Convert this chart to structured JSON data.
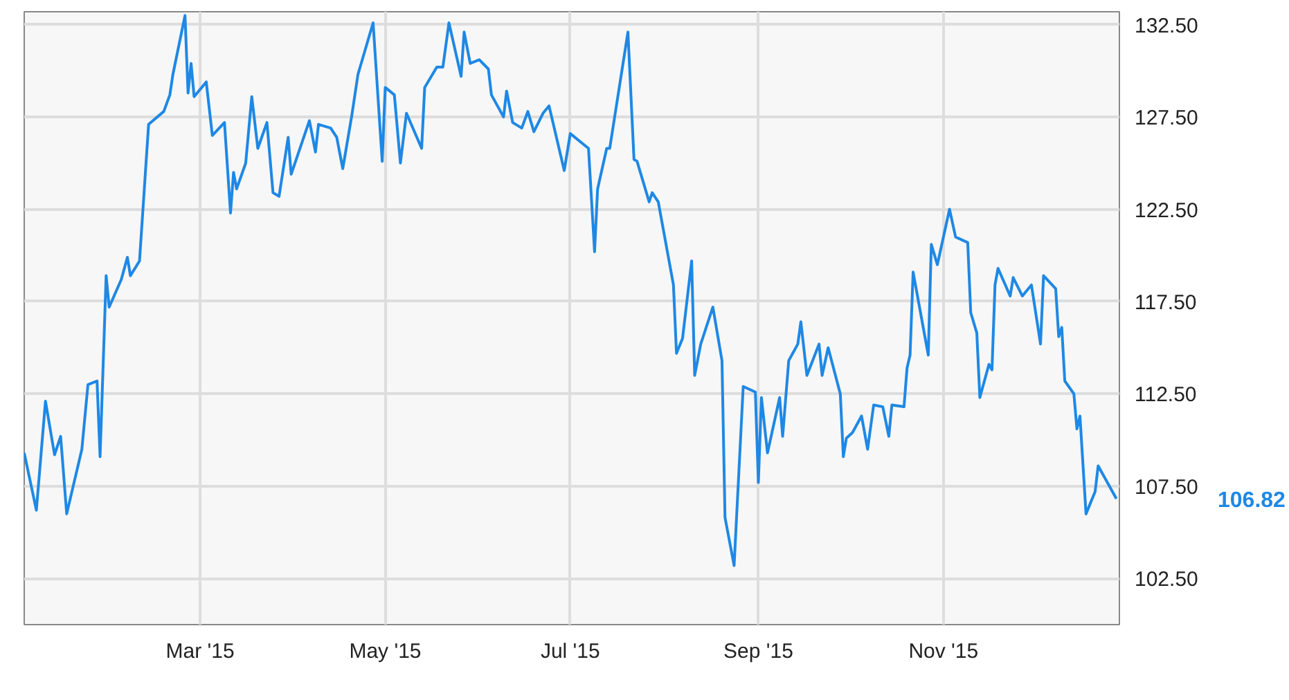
{
  "chart_data": {
    "type": "line",
    "x": [
      "2015-01-02",
      "2015-01-06",
      "2015-01-09",
      "2015-01-12",
      "2015-01-14",
      "2015-01-16",
      "2015-01-21",
      "2015-01-23",
      "2015-01-26",
      "2015-01-27",
      "2015-01-29",
      "2015-01-30",
      "2015-02-03",
      "2015-02-05",
      "2015-02-06",
      "2015-02-09",
      "2015-02-12",
      "2015-02-17",
      "2015-02-19",
      "2015-02-20",
      "2015-02-24",
      "2015-02-25",
      "2015-02-26",
      "2015-02-27",
      "2015-03-03",
      "2015-03-05",
      "2015-03-09",
      "2015-03-11",
      "2015-03-12",
      "2015-03-13",
      "2015-03-16",
      "2015-03-18",
      "2015-03-20",
      "2015-03-23",
      "2015-03-25",
      "2015-03-27",
      "2015-03-30",
      "2015-03-31",
      "2015-04-06",
      "2015-04-08",
      "2015-04-09",
      "2015-04-13",
      "2015-04-15",
      "2015-04-17",
      "2015-04-20",
      "2015-04-22",
      "2015-04-27",
      "2015-04-30",
      "2015-05-01",
      "2015-05-04",
      "2015-05-06",
      "2015-05-08",
      "2015-05-13",
      "2015-05-14",
      "2015-05-18",
      "2015-05-20",
      "2015-05-22",
      "2015-05-26",
      "2015-05-27",
      "2015-05-29",
      "2015-06-01",
      "2015-06-04",
      "2015-06-05",
      "2015-06-09",
      "2015-06-10",
      "2015-06-12",
      "2015-06-15",
      "2015-06-17",
      "2015-06-19",
      "2015-06-22",
      "2015-06-24",
      "2015-06-29",
      "2015-07-01",
      "2015-07-07",
      "2015-07-09",
      "2015-07-10",
      "2015-07-13",
      "2015-07-14",
      "2015-07-20",
      "2015-07-22",
      "2015-07-23",
      "2015-07-27",
      "2015-07-28",
      "2015-07-30",
      "2015-08-04",
      "2015-08-05",
      "2015-08-07",
      "2015-08-10",
      "2015-08-11",
      "2015-08-13",
      "2015-08-17",
      "2015-08-20",
      "2015-08-21",
      "2015-08-24",
      "2015-08-27",
      "2015-08-31",
      "2015-09-01",
      "2015-09-02",
      "2015-09-04",
      "2015-09-08",
      "2015-09-09",
      "2015-09-11",
      "2015-09-14",
      "2015-09-15",
      "2015-09-17",
      "2015-09-21",
      "2015-09-22",
      "2015-09-24",
      "2015-09-28",
      "2015-09-29",
      "2015-09-30",
      "2015-10-02",
      "2015-10-05",
      "2015-10-07",
      "2015-10-09",
      "2015-10-12",
      "2015-10-14",
      "2015-10-15",
      "2015-10-19",
      "2015-10-20",
      "2015-10-21",
      "2015-10-22",
      "2015-10-27",
      "2015-10-28",
      "2015-10-30",
      "2015-11-03",
      "2015-11-05",
      "2015-11-09",
      "2015-11-10",
      "2015-11-12",
      "2015-11-13",
      "2015-11-16",
      "2015-11-17",
      "2015-11-18",
      "2015-11-19",
      "2015-11-23",
      "2015-11-24",
      "2015-11-27",
      "2015-11-30",
      "2015-12-03",
      "2015-12-04",
      "2015-12-08",
      "2015-12-09",
      "2015-12-10",
      "2015-12-11",
      "2015-12-14",
      "2015-12-15",
      "2015-12-16",
      "2015-12-18",
      "2015-12-21",
      "2015-12-22",
      "2015-12-28"
    ],
    "series": [
      {
        "color": "#1e88e5",
        "values": [
          109.3,
          106.2,
          112.1,
          109.2,
          110.2,
          106.0,
          109.5,
          113.0,
          113.2,
          109.1,
          118.9,
          117.2,
          118.7,
          119.9,
          118.9,
          119.7,
          127.1,
          127.8,
          128.7,
          129.8,
          133.0,
          128.8,
          130.4,
          128.6,
          129.4,
          126.5,
          127.2,
          122.3,
          124.5,
          123.6,
          125.0,
          128.6,
          125.8,
          127.2,
          123.4,
          123.2,
          126.4,
          124.4,
          127.3,
          125.6,
          127.1,
          126.9,
          126.4,
          124.7,
          127.6,
          129.8,
          132.6,
          125.1,
          129.1,
          128.7,
          125.0,
          127.7,
          125.8,
          129.1,
          130.2,
          130.2,
          132.6,
          129.7,
          132.1,
          130.4,
          130.6,
          130.1,
          128.7,
          127.5,
          128.9,
          127.2,
          126.9,
          127.8,
          126.7,
          127.7,
          128.1,
          124.6,
          126.6,
          125.8,
          120.2,
          123.6,
          125.8,
          125.8,
          132.1,
          125.2,
          125.1,
          122.9,
          123.4,
          122.9,
          118.4,
          114.7,
          115.5,
          119.7,
          113.5,
          115.2,
          117.2,
          114.3,
          105.8,
          103.2,
          112.9,
          112.6,
          107.7,
          112.3,
          109.3,
          112.3,
          110.2,
          114.3,
          115.2,
          116.4,
          113.5,
          115.2,
          113.5,
          115.0,
          112.5,
          109.1,
          110.1,
          110.4,
          111.3,
          109.5,
          111.9,
          111.8,
          110.2,
          111.9,
          111.8,
          113.9,
          114.6,
          119.1,
          114.6,
          120.6,
          119.5,
          122.5,
          121.0,
          120.7,
          116.9,
          115.8,
          112.3,
          114.1,
          113.8,
          118.4,
          119.3,
          117.8,
          118.8,
          117.8,
          118.4,
          115.2,
          118.9,
          118.2,
          115.6,
          116.1,
          113.2,
          112.5,
          110.6,
          111.3,
          106.0,
          107.2,
          108.6,
          106.82
        ]
      }
    ],
    "xlim": [
      "2015-01-02",
      "2015-12-29"
    ],
    "xticks": [
      {
        "value": "2015-03-01",
        "label": "Mar '15"
      },
      {
        "value": "2015-05-01",
        "label": "May '15"
      },
      {
        "value": "2015-07-01",
        "label": "Jul '15"
      },
      {
        "value": "2015-09-01",
        "label": "Sep '15"
      },
      {
        "value": "2015-11-01",
        "label": "Nov '15"
      }
    ],
    "ylim": [
      100,
      133.2
    ],
    "yticks": [
      {
        "value": 102.5,
        "label": "102.50"
      },
      {
        "value": 107.5,
        "label": "107.50"
      },
      {
        "value": 112.5,
        "label": "112.50"
      },
      {
        "value": 117.5,
        "label": "117.50"
      },
      {
        "value": 122.5,
        "label": "122.50"
      },
      {
        "value": 127.5,
        "label": "127.50"
      },
      {
        "value": 132.5,
        "label": "132.50"
      }
    ],
    "annotations": [
      "106.82"
    ],
    "grid": true,
    "line_style": "solid"
  }
}
